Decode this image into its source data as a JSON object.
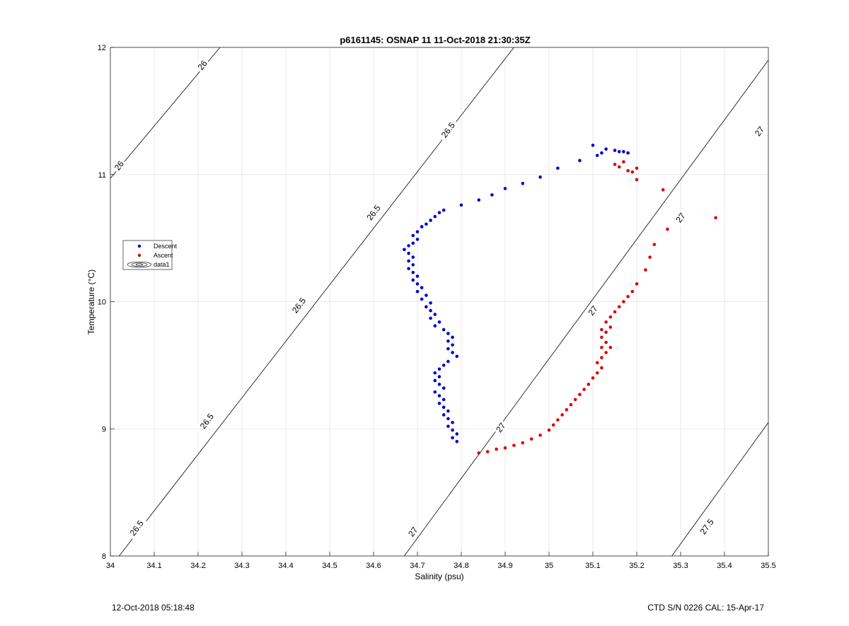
{
  "chart_data": {
    "type": "scatter",
    "title": "p6161145: OSNAP 11 11-Oct-2018 21:30:35Z",
    "xlabel": "Salinity (psu)",
    "ylabel": "Temperature (°C)",
    "xlim": [
      34,
      35.5
    ],
    "ylim": [
      8,
      12
    ],
    "xticks": [
      "34",
      "34.1",
      "34.2",
      "34.3",
      "34.4",
      "34.5",
      "34.6",
      "34.7",
      "34.8",
      "34.9",
      "35",
      "35.1",
      "35.2",
      "35.3",
      "35.4",
      "35.5"
    ],
    "yticks": [
      "8",
      "9",
      "10",
      "11",
      "12"
    ],
    "grid": true,
    "legend": {
      "placement": "left",
      "entries": [
        "Descent",
        "Ascent",
        "data1"
      ]
    },
    "series": [
      {
        "name": "Descent",
        "color": "#0000cc",
        "x": [
          35.1,
          35.13,
          35.15,
          35.16,
          35.17,
          35.18,
          35.11,
          35.12,
          35.07,
          35.02,
          34.98,
          34.94,
          34.9,
          34.87,
          34.84,
          34.8,
          34.76,
          34.75,
          34.74,
          34.73,
          34.72,
          34.71,
          34.7,
          34.69,
          34.7,
          34.69,
          34.68,
          34.67,
          34.68,
          34.69,
          34.68,
          34.69,
          34.68,
          34.69,
          34.7,
          34.69,
          34.7,
          34.71,
          34.7,
          34.72,
          34.71,
          34.73,
          34.72,
          34.73,
          34.74,
          34.73,
          34.75,
          34.74,
          34.76,
          34.77,
          34.78,
          34.77,
          34.78,
          34.77,
          34.78,
          34.79,
          34.77,
          34.76,
          34.75,
          34.74,
          34.75,
          34.74,
          34.75,
          34.76,
          34.74,
          34.75,
          34.76,
          34.75,
          34.76,
          34.77,
          34.76,
          34.77,
          34.78,
          34.77,
          34.78,
          34.79,
          34.78,
          34.79
        ],
        "y": [
          11.23,
          11.2,
          11.19,
          11.18,
          11.18,
          11.17,
          11.15,
          11.17,
          11.11,
          11.05,
          10.98,
          10.93,
          10.89,
          10.84,
          10.8,
          10.76,
          10.72,
          10.7,
          10.67,
          10.64,
          10.61,
          10.59,
          10.55,
          10.52,
          10.49,
          10.46,
          10.44,
          10.41,
          10.38,
          10.35,
          10.32,
          10.29,
          10.26,
          10.23,
          10.2,
          10.17,
          10.14,
          10.11,
          10.08,
          10.05,
          10.02,
          9.99,
          9.96,
          9.93,
          9.9,
          9.87,
          9.84,
          9.81,
          9.78,
          9.75,
          9.72,
          9.69,
          9.66,
          9.63,
          9.6,
          9.57,
          9.53,
          9.5,
          9.47,
          9.44,
          9.41,
          9.38,
          9.35,
          9.32,
          9.29,
          9.26,
          9.23,
          9.2,
          9.17,
          9.14,
          9.11,
          9.08,
          9.05,
          9.02,
          8.99,
          8.96,
          8.93,
          8.9
        ]
      },
      {
        "name": "Ascent",
        "color": "#dd0000",
        "x": [
          35.38,
          35.26,
          35.27,
          35.24,
          35.23,
          35.22,
          35.2,
          35.19,
          35.18,
          35.17,
          35.16,
          35.15,
          35.14,
          35.13,
          35.14,
          35.13,
          35.12,
          35.13,
          35.12,
          35.13,
          35.12,
          35.11,
          35.12,
          35.11,
          35.1,
          35.09,
          35.08,
          35.07,
          35.06,
          35.05,
          35.04,
          35.03,
          35.02,
          35.01,
          35.0,
          34.98,
          34.96,
          34.94,
          34.92,
          34.9,
          34.88,
          34.86,
          34.84,
          35.2,
          35.19,
          35.16,
          35.15,
          35.17,
          35.18,
          35.2,
          35.14,
          35.12
        ],
        "y": [
          10.66,
          10.88,
          10.57,
          10.45,
          10.35,
          10.25,
          10.14,
          10.08,
          10.04,
          10.0,
          9.96,
          9.92,
          9.88,
          9.84,
          9.8,
          9.76,
          9.72,
          9.68,
          9.64,
          9.6,
          9.56,
          9.52,
          9.48,
          9.44,
          9.4,
          9.35,
          9.31,
          9.27,
          9.23,
          9.19,
          9.15,
          9.11,
          9.07,
          9.03,
          8.99,
          8.95,
          8.92,
          8.89,
          8.87,
          8.85,
          8.84,
          8.82,
          8.81,
          11.05,
          11.02,
          11.06,
          11.08,
          11.1,
          11.03,
          10.96,
          9.64,
          9.78
        ]
      }
    ],
    "contours": [
      {
        "label": "26",
        "x": [
          34.0,
          34.25
        ],
        "y": [
          10.97,
          12.0
        ]
      },
      {
        "label": "26.5",
        "x": [
          34.02,
          34.92
        ],
        "y": [
          8.0,
          12.0
        ]
      },
      {
        "label": "27",
        "x": [
          34.67,
          35.5
        ],
        "y": [
          8.0,
          11.9
        ]
      },
      {
        "label": "27.5",
        "x": [
          35.28,
          35.5
        ],
        "y": [
          8.0,
          9.05
        ]
      }
    ],
    "contour_labels": [
      {
        "text": "26",
        "x": 34.21,
        "y": 11.86
      },
      {
        "text": "26",
        "x": 34.02,
        "y": 11.07
      },
      {
        "text": "26.5",
        "x": 34.77,
        "y": 11.35
      },
      {
        "text": "26.5",
        "x": 34.6,
        "y": 10.7
      },
      {
        "text": "26.5",
        "x": 34.43,
        "y": 9.97
      },
      {
        "text": "26.5",
        "x": 34.22,
        "y": 9.06
      },
      {
        "text": "26.5",
        "x": 34.06,
        "y": 8.22
      },
      {
        "text": "27",
        "x": 35.48,
        "y": 11.34
      },
      {
        "text": "27",
        "x": 35.3,
        "y": 10.66
      },
      {
        "text": "27",
        "x": 35.1,
        "y": 9.93
      },
      {
        "text": "27",
        "x": 34.89,
        "y": 9.01
      },
      {
        "text": "27",
        "x": 34.69,
        "y": 8.19
      },
      {
        "text": "27.5",
        "x": 35.36,
        "y": 8.23
      }
    ]
  },
  "footer": {
    "left": "12-Oct-2018 05:18:48",
    "right": "CTD S/N 0226  CAL: 15-Apr-17"
  }
}
